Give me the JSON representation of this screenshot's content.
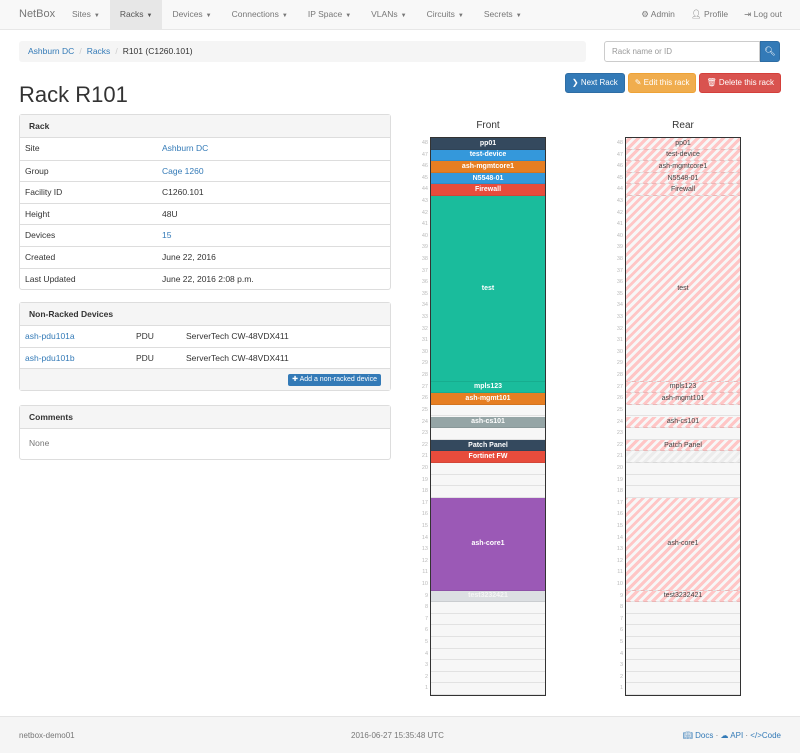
{
  "navbar": {
    "brand": "NetBox",
    "items": [
      {
        "label": "Sites",
        "active": false
      },
      {
        "label": "Racks",
        "active": true
      },
      {
        "label": "Devices",
        "active": false
      },
      {
        "label": "Connections",
        "active": false
      },
      {
        "label": "IP Space",
        "active": false
      },
      {
        "label": "VLANs",
        "active": false
      },
      {
        "label": "Circuits",
        "active": false
      },
      {
        "label": "Secrets",
        "active": false
      }
    ],
    "right": [
      {
        "label": "Admin",
        "icon": "gear-icon"
      },
      {
        "label": "Profile",
        "icon": "user-icon"
      },
      {
        "label": "Log out",
        "icon": "logout-icon"
      }
    ]
  },
  "breadcrumb": [
    "Ashburn DC",
    "Racks",
    "R101 (C1260.101)"
  ],
  "search": {
    "placeholder": "Rack name or ID",
    "icon": "search-icon"
  },
  "actions": {
    "next": "Next Rack",
    "edit": "Edit this rack",
    "delete": "Delete this rack"
  },
  "title": "Rack R101",
  "rack_panel": {
    "heading": "Rack",
    "rows": [
      {
        "k": "Site",
        "v": "Ashburn DC",
        "link": true
      },
      {
        "k": "Group",
        "v": "Cage 1260",
        "link": true
      },
      {
        "k": "Facility ID",
        "v": "C1260.101",
        "link": false
      },
      {
        "k": "Height",
        "v": "48U",
        "link": false
      },
      {
        "k": "Devices",
        "v": "15",
        "link": true
      },
      {
        "k": "Created",
        "v": "June 22, 2016",
        "link": false
      },
      {
        "k": "Last Updated",
        "v": "June 22, 2016 2:08 p.m.",
        "link": false
      }
    ]
  },
  "nonracked": {
    "heading": "Non-Racked Devices",
    "rows": [
      {
        "name": "ash-pdu101a",
        "role": "PDU",
        "type": "ServerTech CW-48VDX411"
      },
      {
        "name": "ash-pdu101b",
        "role": "PDU",
        "type": "ServerTech CW-48VDX411"
      }
    ],
    "add": "Add a non-racked device"
  },
  "comments": {
    "heading": "Comments",
    "body": "None"
  },
  "elevation": {
    "height": 48,
    "front_label": "Front",
    "rear_label": "Rear",
    "devices": [
      {
        "name": "pp01",
        "u": 48,
        "size": 1,
        "color": "#34495e"
      },
      {
        "name": "test-device",
        "u": 47,
        "size": 1,
        "color": "#3498db"
      },
      {
        "name": "ash-mgmtcore1",
        "u": 46,
        "size": 1,
        "color": "#e67e22"
      },
      {
        "name": "N5548-01",
        "u": 45,
        "size": 1,
        "color": "#3498db"
      },
      {
        "name": "Firewall",
        "u": 44,
        "size": 1,
        "color": "#e74c3c"
      },
      {
        "name": "test",
        "u": 28,
        "size": 16,
        "color": "#1abc9c"
      },
      {
        "name": "mpls123",
        "u": 27,
        "size": 1,
        "color": "#1abc9c"
      },
      {
        "name": "ash-mgmt101",
        "u": 26,
        "size": 1,
        "color": "#e67e22"
      },
      {
        "name": "ash-cs101",
        "u": 24,
        "size": 1,
        "color": "#95a5a6"
      },
      {
        "name": "Patch Panel",
        "u": 22,
        "size": 1,
        "color": "#34495e"
      },
      {
        "name": "Fortinet FW",
        "u": 21,
        "size": 1,
        "color": "#e74c3c",
        "half_depth": true
      },
      {
        "name": "ash-core1",
        "u": 10,
        "size": 8,
        "color": "#9b59b6"
      },
      {
        "name": "test3232421",
        "u": 9,
        "size": 1,
        "color": "#dcdfe2"
      }
    ]
  },
  "footer": {
    "host": "netbox-demo01",
    "time": "2016-06-27 15:35:48 UTC",
    "docs": "Docs",
    "api": "API",
    "code": "Code"
  }
}
